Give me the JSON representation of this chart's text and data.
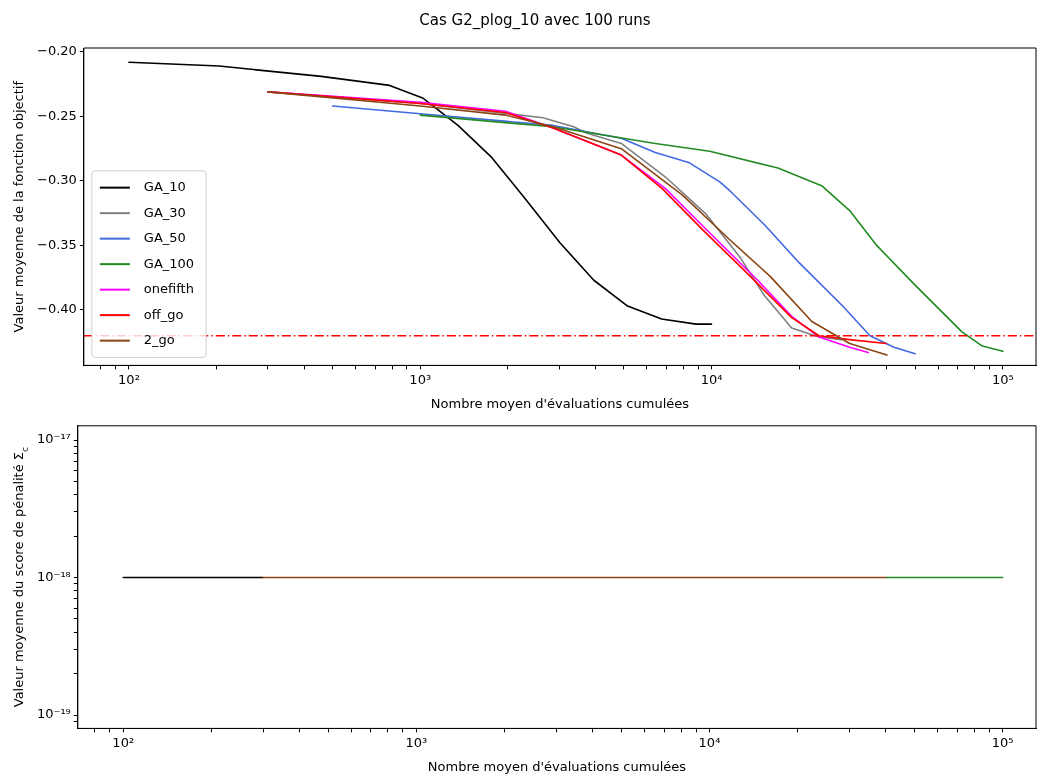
{
  "chart_data": [
    {
      "type": "line",
      "title": "Cas G2_plog_10 avec 100 runs",
      "xlabel": "Nombre moyen d'évaluations cumulées",
      "ylabel": "Valeur moyenne de la fonction objectif",
      "log": "x",
      "xlim": [
        70,
        130000
      ],
      "ylim": [
        -0.443,
        -0.197
      ],
      "xticks": [
        {
          "value": 80,
          "label": null
        },
        {
          "value": 90,
          "label": null
        },
        {
          "value": 100,
          "label": "10²"
        },
        {
          "value": 200,
          "label": null
        },
        {
          "value": 300,
          "label": null
        },
        {
          "value": 400,
          "label": null
        },
        {
          "value": 500,
          "label": null
        },
        {
          "value": 600,
          "label": null
        },
        {
          "value": 700,
          "label": null
        },
        {
          "value": 800,
          "label": null
        },
        {
          "value": 900,
          "label": null
        },
        {
          "value": 1000,
          "label": "10³"
        },
        {
          "value": 2000,
          "label": null
        },
        {
          "value": 3000,
          "label": null
        },
        {
          "value": 4000,
          "label": null
        },
        {
          "value": 5000,
          "label": null
        },
        {
          "value": 6000,
          "label": null
        },
        {
          "value": 7000,
          "label": null
        },
        {
          "value": 8000,
          "label": null
        },
        {
          "value": 9000,
          "label": null
        },
        {
          "value": 10000,
          "label": "10⁴"
        },
        {
          "value": 20000,
          "label": null
        },
        {
          "value": 30000,
          "label": null
        },
        {
          "value": 40000,
          "label": null
        },
        {
          "value": 50000,
          "label": null
        },
        {
          "value": 60000,
          "label": null
        },
        {
          "value": 70000,
          "label": null
        },
        {
          "value": 80000,
          "label": null
        },
        {
          "value": 90000,
          "label": null
        },
        {
          "value": 100000,
          "label": "10⁵"
        }
      ],
      "yticks": [
        {
          "value": -0.4,
          "label": "−0.40"
        },
        {
          "value": -0.35,
          "label": "−0.35"
        },
        {
          "value": -0.3,
          "label": "−0.30"
        },
        {
          "value": -0.25,
          "label": "−0.25"
        },
        {
          "value": -0.2,
          "label": "−0.20"
        }
      ],
      "legend": "lower left",
      "grid": false,
      "marker": "none",
      "line_style": "solid",
      "ref_lines": [
        {
          "axis": "y",
          "value": -0.42,
          "color": "#ff0000",
          "line_style": "dashdot"
        }
      ],
      "series": [
        {
          "name": "GA_10",
          "color": "#000000",
          "x": [
            100,
            204,
            457,
            785,
            1024,
            1348,
            1762,
            2296,
            3017,
            3945,
            5150,
            6740,
            8850,
            10000
          ],
          "values": [
            -0.208,
            -0.211,
            -0.219,
            -0.226,
            -0.236,
            -0.257,
            -0.282,
            -0.314,
            -0.348,
            -0.377,
            -0.397,
            -0.407,
            -0.411,
            -0.411
          ]
        },
        {
          "name": "GA_30",
          "color": "#808080",
          "x": [
            300,
            1000,
            2640,
            3360,
            3740,
            4900,
            6950,
            9600,
            12600,
            15200,
            18850,
            23400,
            28000
          ],
          "values": [
            -0.231,
            -0.24,
            -0.251,
            -0.258,
            -0.263,
            -0.271,
            -0.297,
            -0.326,
            -0.36,
            -0.389,
            -0.414,
            -0.421,
            -0.423
          ]
        },
        {
          "name": "GA_50",
          "color": "#4169e1",
          "x": [
            500,
            1000,
            2858,
            4900,
            6410,
            8400,
            10700,
            11600,
            15200,
            19900,
            28200,
            35000,
            42300,
            50000
          ],
          "values": [
            -0.242,
            -0.248,
            -0.257,
            -0.267,
            -0.278,
            -0.286,
            -0.301,
            -0.308,
            -0.334,
            -0.363,
            -0.397,
            -0.42,
            -0.429,
            -0.434
          ]
        },
        {
          "name": "GA_100",
          "color": "#228b22",
          "x": [
            1000,
            2000,
            2858,
            6410,
            9860,
            16900,
            23990,
            29800,
            36900,
            49600,
            72400,
            85100,
            100000
          ],
          "values": [
            -0.249,
            -0.255,
            -0.258,
            -0.271,
            -0.277,
            -0.29,
            -0.304,
            -0.323,
            -0.35,
            -0.38,
            -0.417,
            -0.428,
            -0.432
          ]
        },
        {
          "name": "onefifth",
          "color": "#ff00ff",
          "x": [
            300,
            1000,
            1960,
            2858,
            4900,
            6950,
            9330,
            14400,
            18850,
            23400,
            29800,
            34500
          ],
          "values": [
            -0.231,
            -0.239,
            -0.246,
            -0.259,
            -0.28,
            -0.306,
            -0.335,
            -0.377,
            -0.405,
            -0.421,
            -0.429,
            -0.433
          ]
        },
        {
          "name": "off_go",
          "color": "#ff0000",
          "x": [
            300,
            1000,
            1960,
            2858,
            4900,
            6770,
            9330,
            12900,
            18850,
            23400,
            29800,
            39800
          ],
          "values": [
            -0.231,
            -0.24,
            -0.247,
            -0.259,
            -0.28,
            -0.306,
            -0.338,
            -0.369,
            -0.406,
            -0.42,
            -0.423,
            -0.426
          ]
        },
        {
          "name": "2_go",
          "color": "#8b4513",
          "x": [
            300,
            1000,
            1960,
            2858,
            4900,
            7950,
            11600,
            15900,
            22100,
            29800,
            40000
          ],
          "values": [
            -0.231,
            -0.242,
            -0.249,
            -0.258,
            -0.275,
            -0.311,
            -0.346,
            -0.374,
            -0.409,
            -0.426,
            -0.435
          ]
        }
      ]
    },
    {
      "type": "line",
      "xlabel": "Nombre moyen d'évaluations cumulées",
      "ylabel": "Valeur moyenne du score de pénalité Σ$_{c}$",
      "log": "xy",
      "xlim": [
        70,
        130000
      ],
      "ylim": [
        8e-20,
        1.27e-17
      ],
      "xticks": [
        {
          "value": 80,
          "label": null
        },
        {
          "value": 90,
          "label": null
        },
        {
          "value": 100,
          "label": "10²"
        },
        {
          "value": 200,
          "label": null
        },
        {
          "value": 300,
          "label": null
        },
        {
          "value": 400,
          "label": null
        },
        {
          "value": 500,
          "label": null
        },
        {
          "value": 600,
          "label": null
        },
        {
          "value": 700,
          "label": null
        },
        {
          "value": 800,
          "label": null
        },
        {
          "value": 900,
          "label": null
        },
        {
          "value": 1000,
          "label": "10³"
        },
        {
          "value": 2000,
          "label": null
        },
        {
          "value": 3000,
          "label": null
        },
        {
          "value": 4000,
          "label": null
        },
        {
          "value": 5000,
          "label": null
        },
        {
          "value": 6000,
          "label": null
        },
        {
          "value": 7000,
          "label": null
        },
        {
          "value": 8000,
          "label": null
        },
        {
          "value": 9000,
          "label": null
        },
        {
          "value": 10000,
          "label": "10⁴"
        },
        {
          "value": 20000,
          "label": null
        },
        {
          "value": 30000,
          "label": null
        },
        {
          "value": 40000,
          "label": null
        },
        {
          "value": 50000,
          "label": null
        },
        {
          "value": 60000,
          "label": null
        },
        {
          "value": 70000,
          "label": null
        },
        {
          "value": 80000,
          "label": null
        },
        {
          "value": 90000,
          "label": null
        },
        {
          "value": 100000,
          "label": "10⁵"
        }
      ],
      "yticks": [
        {
          "value": 9e-20,
          "label": null
        },
        {
          "value": 1e-19,
          "label": "10⁻¹⁹"
        },
        {
          "value": 2e-19,
          "label": null
        },
        {
          "value": 3e-19,
          "label": null
        },
        {
          "value": 4e-19,
          "label": null
        },
        {
          "value": 5e-19,
          "label": null
        },
        {
          "value": 6e-19,
          "label": null
        },
        {
          "value": 7e-19,
          "label": null
        },
        {
          "value": 8e-19,
          "label": null
        },
        {
          "value": 9e-19,
          "label": null
        },
        {
          "value": 1e-18,
          "label": "10⁻¹⁸"
        },
        {
          "value": 2e-18,
          "label": null
        },
        {
          "value": 3e-18,
          "label": null
        },
        {
          "value": 4e-18,
          "label": null
        },
        {
          "value": 5e-18,
          "label": null
        },
        {
          "value": 6e-18,
          "label": null
        },
        {
          "value": 7e-18,
          "label": null
        },
        {
          "value": 8e-18,
          "label": null
        },
        {
          "value": 9e-18,
          "label": null
        },
        {
          "value": 1e-17,
          "label": "10⁻¹⁷"
        }
      ],
      "grid": false,
      "marker": "none",
      "line_style": "solid",
      "series": [
        {
          "color": "#000000",
          "x": [
            100,
            300
          ],
          "values": [
            1e-18,
            1e-18
          ]
        },
        {
          "color": "#228b22",
          "x": [
            40000,
            100000
          ],
          "values": [
            1e-18,
            1e-18
          ]
        },
        {
          "color": "#8b4513",
          "x": [
            300,
            40000
          ],
          "values": [
            1e-18,
            1e-18
          ]
        }
      ]
    }
  ]
}
